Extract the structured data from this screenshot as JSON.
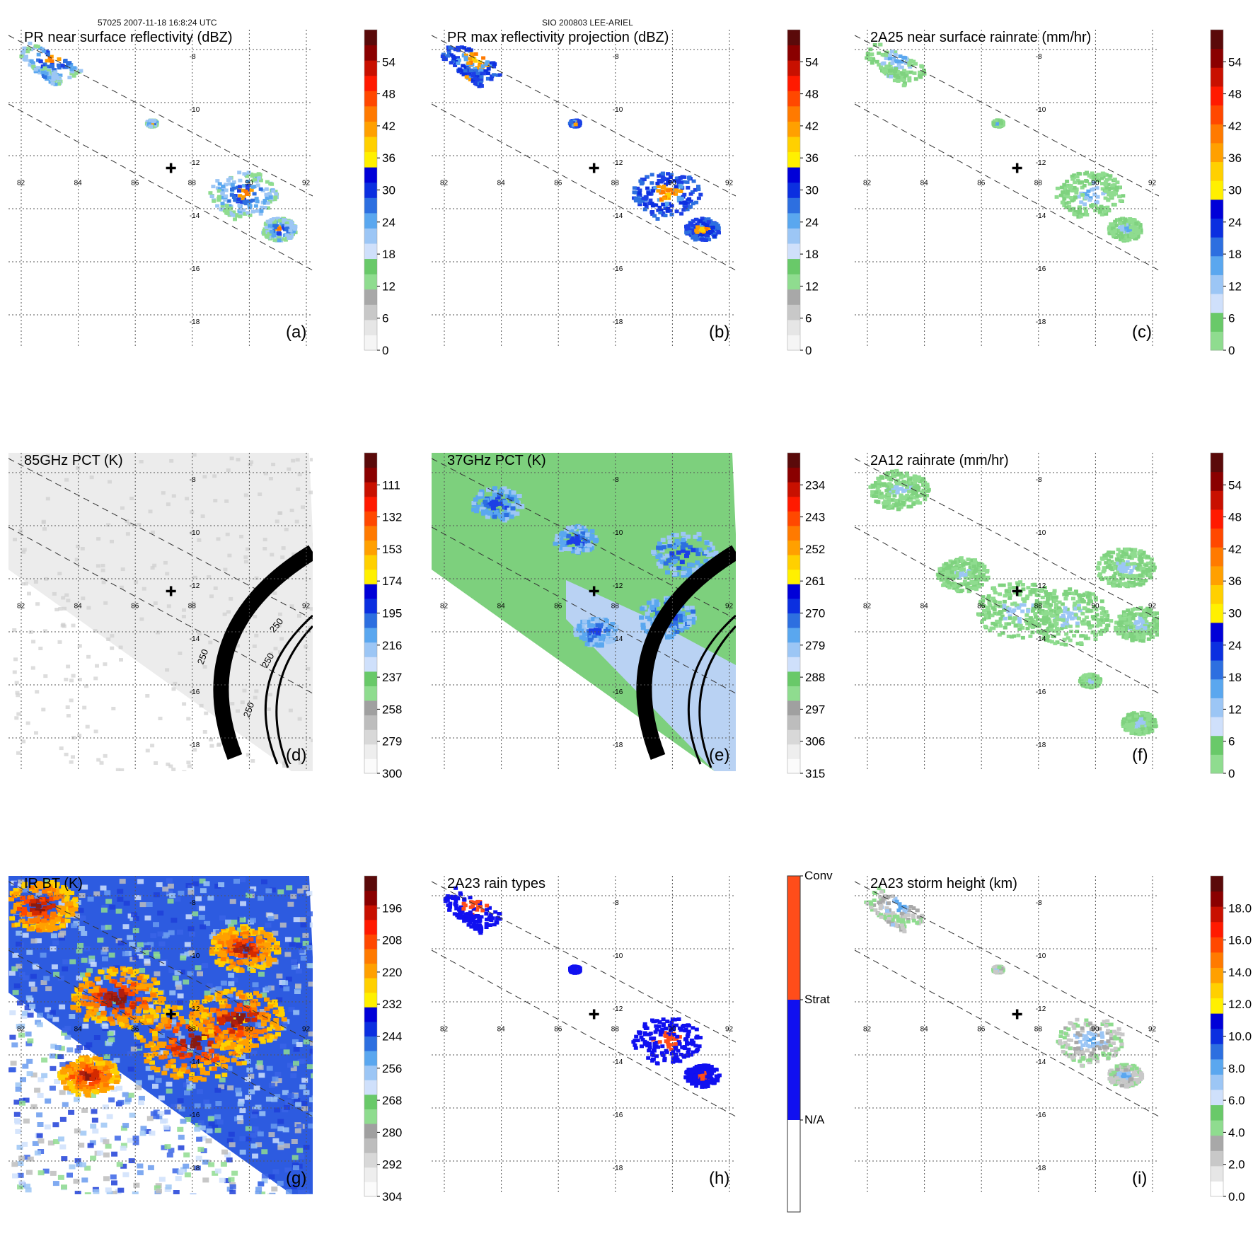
{
  "header": {
    "left": "57025 2007-11-18 16:8:24 UTC",
    "center": "SIO 200803 LEE-ARIEL"
  },
  "chart_data": [
    {
      "type": "heatmap",
      "id": "a",
      "title": "PR near surface reflectivity (dBZ)",
      "label": "(a)",
      "lon_ticks": [
        "82",
        "84",
        "86",
        "88",
        "90",
        "92"
      ],
      "lat_ticks": [
        "-8",
        "-10",
        "-12",
        "-14",
        "-16",
        "-18"
      ],
      "colorbar": {
        "ticks": [
          "0",
          "6",
          "12",
          "18",
          "24",
          "30",
          "36",
          "42",
          "48",
          "54"
        ],
        "range": [
          0,
          60
        ]
      },
      "storm_center": {
        "lon": 87.5,
        "lat": -13.0
      }
    },
    {
      "type": "heatmap",
      "id": "b",
      "title": "PR max reflectivity projection (dBZ)",
      "label": "(b)",
      "lon_ticks": [
        "82",
        "84",
        "86",
        "88",
        "90",
        "92"
      ],
      "lat_ticks": [
        "-8",
        "-10",
        "-12",
        "-14",
        "-16",
        "-18"
      ],
      "colorbar": {
        "ticks": [
          "0",
          "6",
          "12",
          "18",
          "24",
          "30",
          "36",
          "42",
          "48",
          "54"
        ],
        "range": [
          0,
          60
        ]
      },
      "storm_center": {
        "lon": 87.5,
        "lat": -13.0
      }
    },
    {
      "type": "heatmap",
      "id": "c",
      "title": "2A25 near surface rainrate (mm/hr)",
      "label": "(c)",
      "lon_ticks": [
        "82",
        "84",
        "86",
        "88",
        "90",
        "92"
      ],
      "lat_ticks": [
        "-8",
        "-10",
        "-12",
        "-14",
        "-16",
        "-18"
      ],
      "colorbar": {
        "ticks": [
          "0",
          "6",
          "12",
          "18",
          "24",
          "30",
          "36",
          "42",
          "48",
          "54"
        ],
        "range": [
          0,
          60
        ]
      },
      "storm_center": {
        "lon": 87.5,
        "lat": -13.0
      }
    },
    {
      "type": "heatmap",
      "id": "d",
      "title": "85GHz PCT (K)",
      "label": "(d)",
      "lon_ticks": [
        "82",
        "84",
        "86",
        "88",
        "90",
        "92"
      ],
      "lat_ticks": [
        "-8",
        "-10",
        "-12",
        "-14",
        "-16",
        "-18"
      ],
      "colorbar": {
        "ticks": [
          "300",
          "279",
          "258",
          "237",
          "216",
          "195",
          "174",
          "153",
          "132",
          "111"
        ],
        "range": [
          300,
          90
        ]
      },
      "contour_labels": [
        "250",
        "250",
        "250",
        "250",
        "250"
      ],
      "storm_center": {
        "lon": 87.5,
        "lat": -13.0
      }
    },
    {
      "type": "heatmap",
      "id": "e",
      "title": "37GHz PCT (K)",
      "label": "(e)",
      "lon_ticks": [
        "82",
        "84",
        "86",
        "88",
        "90",
        "92"
      ],
      "lat_ticks": [
        "-8",
        "-10",
        "-12",
        "-14",
        "-16",
        "-18"
      ],
      "colorbar": {
        "ticks": [
          "315",
          "306",
          "297",
          "288",
          "279",
          "270",
          "261",
          "252",
          "243",
          "234"
        ],
        "range": [
          315,
          225
        ]
      },
      "storm_center": {
        "lon": 87.5,
        "lat": -13.0
      }
    },
    {
      "type": "heatmap",
      "id": "f",
      "title": "2A12 rainrate (mm/hr)",
      "label": "(f)",
      "lon_ticks": [
        "82",
        "84",
        "86",
        "88",
        "90",
        "92"
      ],
      "lat_ticks": [
        "-8",
        "-10",
        "-12",
        "-14",
        "-16",
        "-18"
      ],
      "colorbar": {
        "ticks": [
          "0",
          "6",
          "12",
          "18",
          "24",
          "30",
          "36",
          "42",
          "48",
          "54"
        ],
        "range": [
          0,
          60
        ]
      },
      "storm_center": {
        "lon": 87.5,
        "lat": -13.0
      }
    },
    {
      "type": "heatmap",
      "id": "g",
      "title": "IR BT (K)",
      "label": "(g)",
      "lon_ticks": [
        "82",
        "84",
        "86",
        "88",
        "90",
        "92"
      ],
      "lat_ticks": [
        "-8",
        "-10",
        "-12",
        "-14",
        "-16",
        "-18"
      ],
      "colorbar": {
        "ticks": [
          "304",
          "292",
          "280",
          "268",
          "256",
          "244",
          "232",
          "220",
          "208",
          "196"
        ],
        "range": [
          304,
          184
        ]
      },
      "storm_center": {
        "lon": 87.5,
        "lat": -13.0
      }
    },
    {
      "type": "heatmap",
      "id": "h",
      "title": "2A23 rain types",
      "label": "(h)",
      "lon_ticks": [
        "82",
        "84",
        "86",
        "88",
        "90",
        "92"
      ],
      "lat_ticks": [
        "-8",
        "-10",
        "-12",
        "-14",
        "-16",
        "-18"
      ],
      "categories": [
        "N/A",
        "Strat",
        "Conv"
      ],
      "storm_center": {
        "lon": 87.5,
        "lat": -13.0
      }
    },
    {
      "type": "heatmap",
      "id": "i",
      "title": "2A23 storm height (km)",
      "label": "(i)",
      "lon_ticks": [
        "82",
        "84",
        "86",
        "88",
        "90",
        "92"
      ],
      "lat_ticks": [
        "-8",
        "-10",
        "-12",
        "-14",
        "-16",
        "-18"
      ],
      "colorbar": {
        "ticks": [
          "0.0",
          "2.0",
          "4.0",
          "6.0",
          "8.0",
          "10.0",
          "12.0",
          "14.0",
          "16.0",
          "18.0"
        ],
        "range": [
          0,
          20
        ]
      },
      "storm_center": {
        "lon": 87.5,
        "lat": -13.0
      }
    }
  ]
}
